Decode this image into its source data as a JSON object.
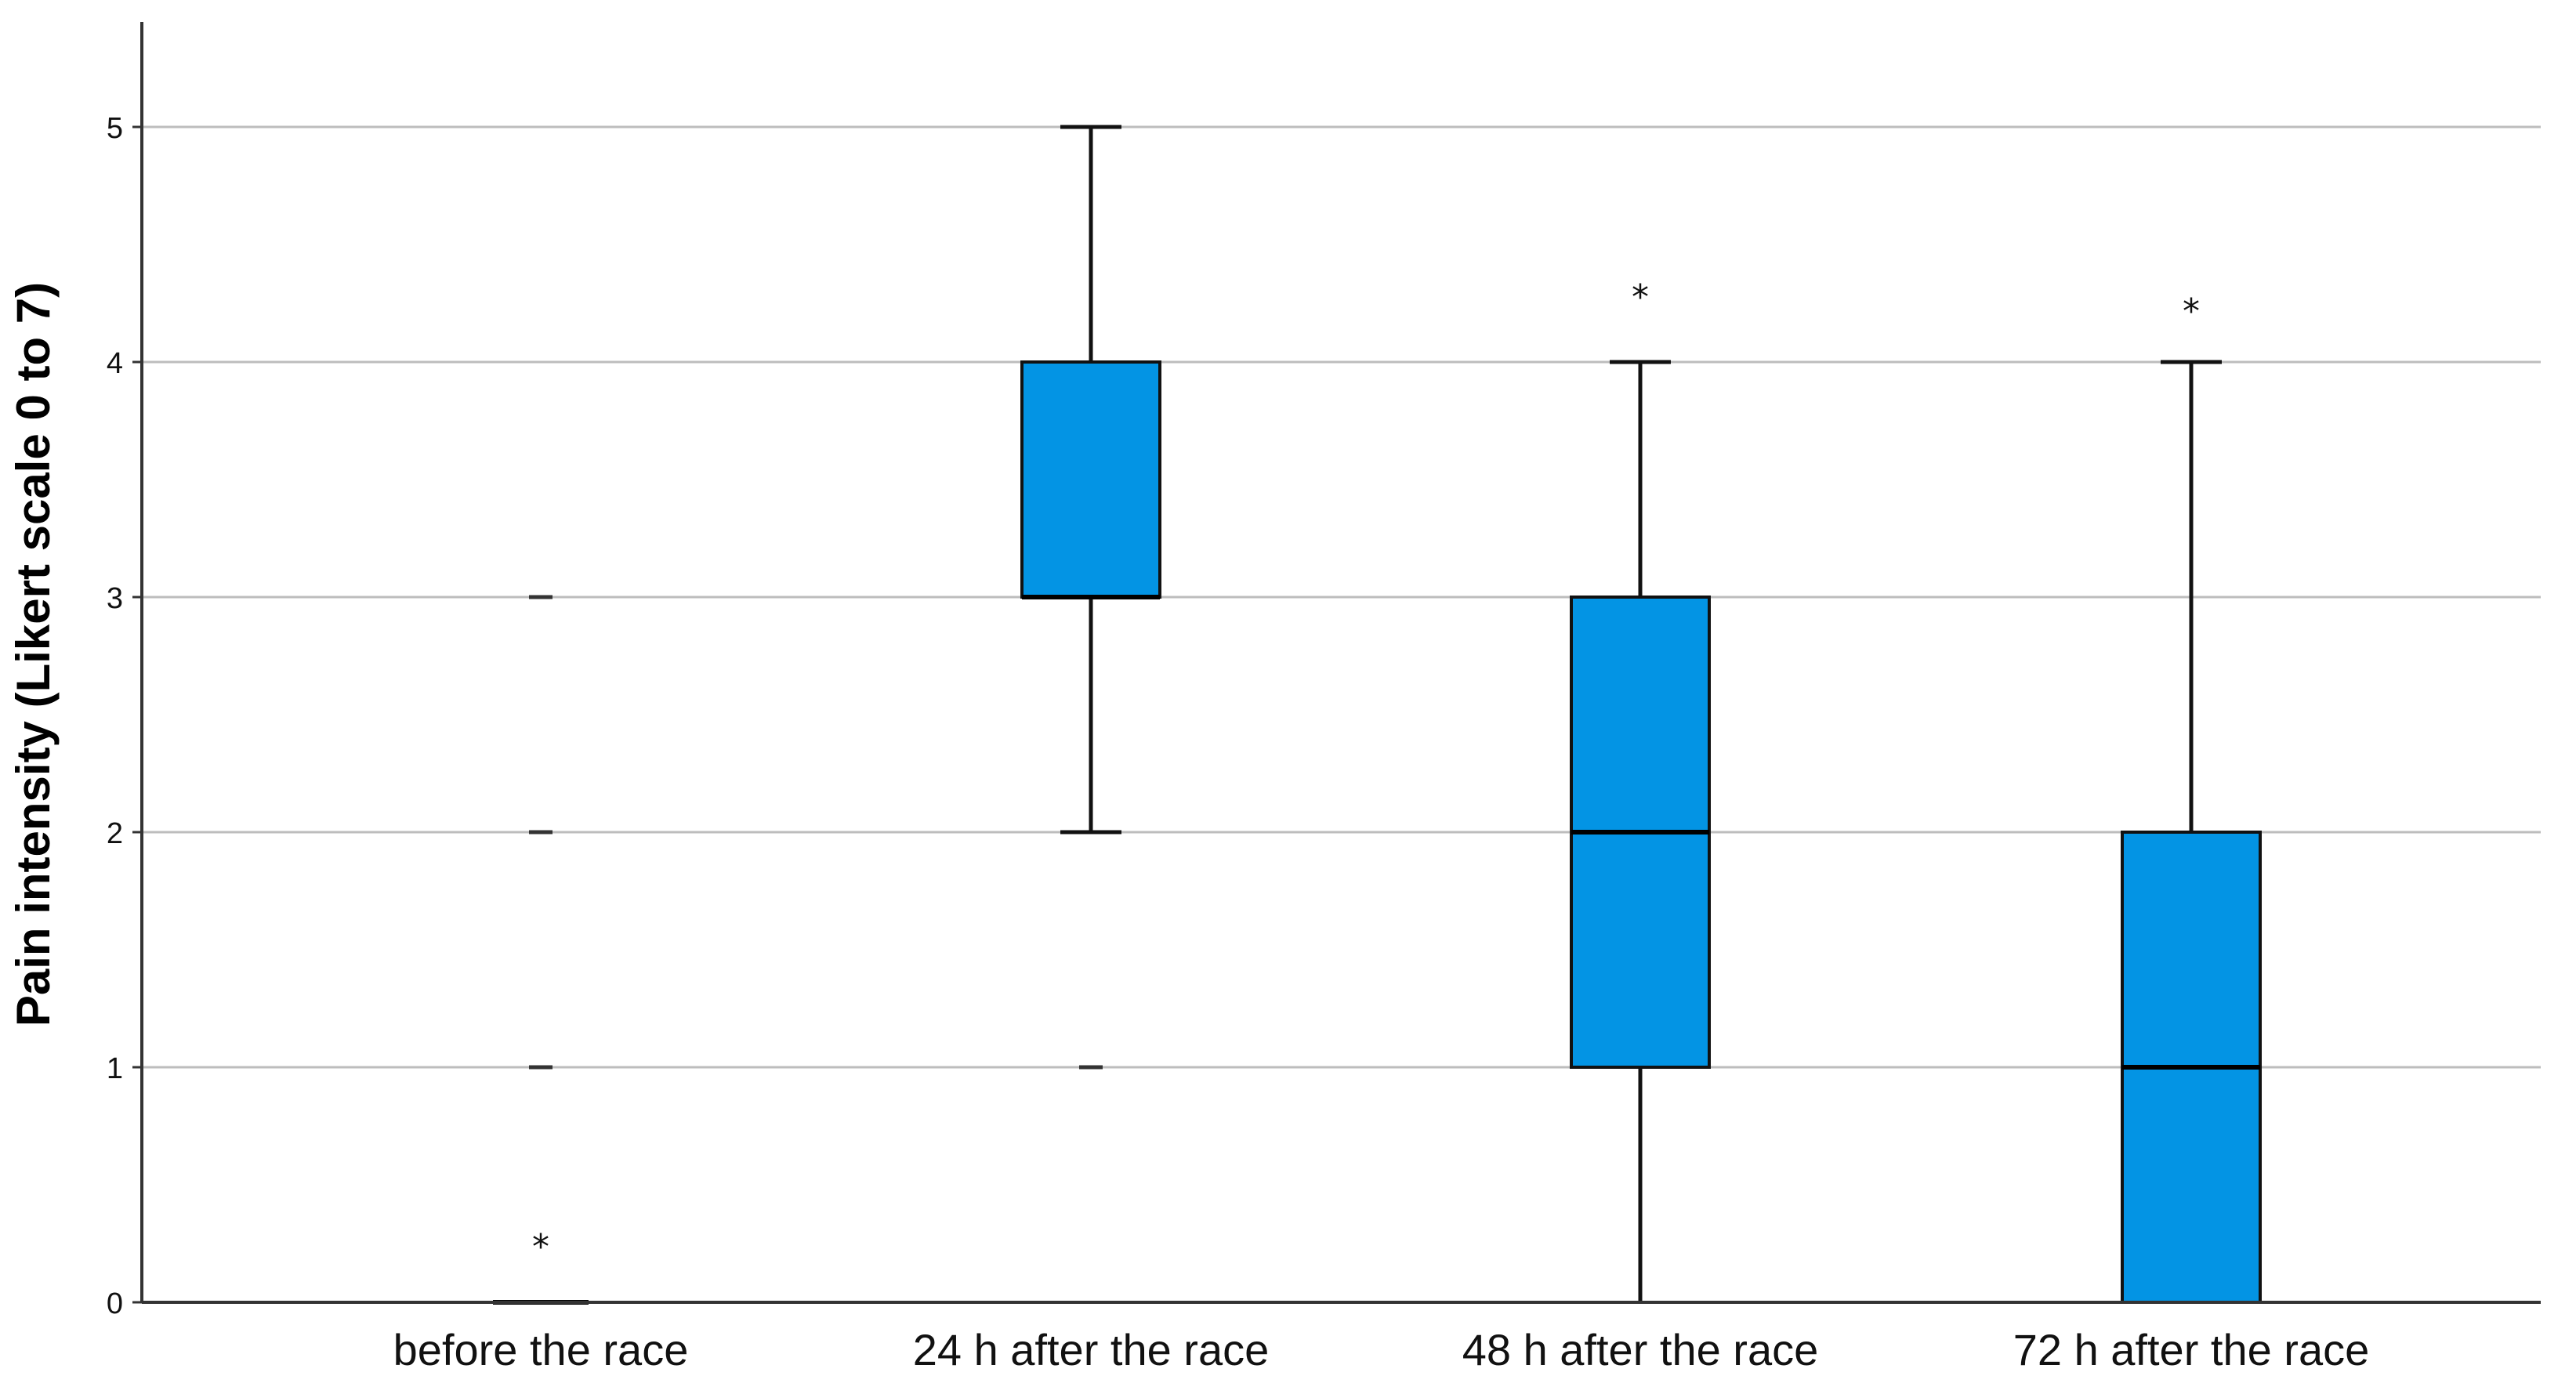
{
  "chart_data": {
    "type": "boxplot",
    "title": "",
    "xlabel": "",
    "ylabel": "Pain intensity (Likert scale 0 to 7)",
    "ylim": [
      0,
      5.45
    ],
    "yticks": [
      0,
      1,
      2,
      3,
      4,
      5
    ],
    "grid": "horizontal",
    "colors": {
      "box_fill": "#0394e4",
      "box_stroke": "#111111",
      "grid": "#bdbdbd",
      "axis": "#333333"
    },
    "categories": [
      "before the race",
      "24 h after the race",
      "48 h after the race",
      "72 h after the race"
    ],
    "boxes": [
      {
        "category": "before the race",
        "min": 0,
        "q1": 0,
        "median": 0,
        "q3": 0,
        "max": 0,
        "outliers": [
          1,
          2,
          3
        ],
        "extremes": [
          0.26
        ]
      },
      {
        "category": "24 h after the race",
        "min": 2,
        "q1": 3,
        "median": 3,
        "q3": 4,
        "max": 5,
        "outliers": [
          1
        ],
        "extremes": []
      },
      {
        "category": "48 h after the race",
        "min": 0,
        "q1": 1,
        "median": 2,
        "q3": 3,
        "max": 4,
        "outliers": [],
        "extremes": [
          4.3
        ]
      },
      {
        "category": "72 h after the race",
        "min": 0,
        "q1": 0,
        "median": 1,
        "q3": 2,
        "max": 4,
        "outliers": [],
        "extremes": [
          4.24
        ]
      }
    ]
  }
}
